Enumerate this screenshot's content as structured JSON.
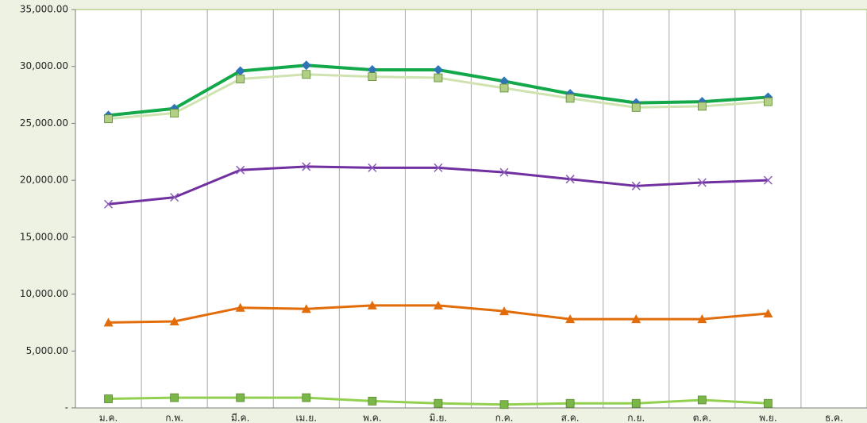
{
  "chart_data": {
    "type": "line",
    "categories": [
      "ม.ค.",
      "ก.พ.",
      "มี.ค.",
      "เม.ย.",
      "พ.ค.",
      "มิ.ย.",
      "ก.ค.",
      "ส.ค.",
      "ก.ย.",
      "ต.ค.",
      "พ.ย.",
      "ธ.ค."
    ],
    "series": [
      {
        "color": "#13a84a",
        "marker": "diamond",
        "marker_color": "#2f74b5",
        "values": [
          25700,
          26300,
          29600,
          30100,
          29700,
          29700,
          28700,
          27600,
          26800,
          26900,
          27300,
          null
        ]
      },
      {
        "color": "#cfe2b0",
        "marker": "square",
        "marker_color": "#b3cf86",
        "values": [
          25400,
          25900,
          28900,
          29300,
          29100,
          29000,
          28100,
          27200,
          26400,
          26500,
          26900,
          null
        ]
      },
      {
        "color": "#7030a0",
        "marker": "x",
        "marker_color": "#8a5cb8",
        "values": [
          17900,
          18500,
          20900,
          21200,
          21100,
          21100,
          20700,
          20100,
          19500,
          19800,
          20000,
          null
        ]
      },
      {
        "color": "#e36c0a",
        "marker": "triangle",
        "marker_color": "#e36c0a",
        "values": [
          7500,
          7600,
          8800,
          8700,
          9000,
          9000,
          8500,
          7800,
          7800,
          7800,
          8300,
          null
        ]
      },
      {
        "color": "#92d050",
        "marker": "square",
        "marker_color": "#7ab648",
        "values": [
          800,
          900,
          900,
          900,
          600,
          400,
          300,
          400,
          400,
          700,
          400,
          null
        ]
      }
    ],
    "ylim": [
      0,
      35000
    ],
    "yticks": [
      {
        "value": 0,
        "label": "-"
      },
      {
        "value": 5000,
        "label": "5,000.00"
      },
      {
        "value": 10000,
        "label": "10,000.00"
      },
      {
        "value": 15000,
        "label": "15,000.00"
      },
      {
        "value": 20000,
        "label": "20,000.00"
      },
      {
        "value": 25000,
        "label": "25,000.00"
      },
      {
        "value": 30000,
        "label": "30,000.00"
      },
      {
        "value": 35000,
        "label": "35,000.00"
      }
    ],
    "grid": true
  }
}
